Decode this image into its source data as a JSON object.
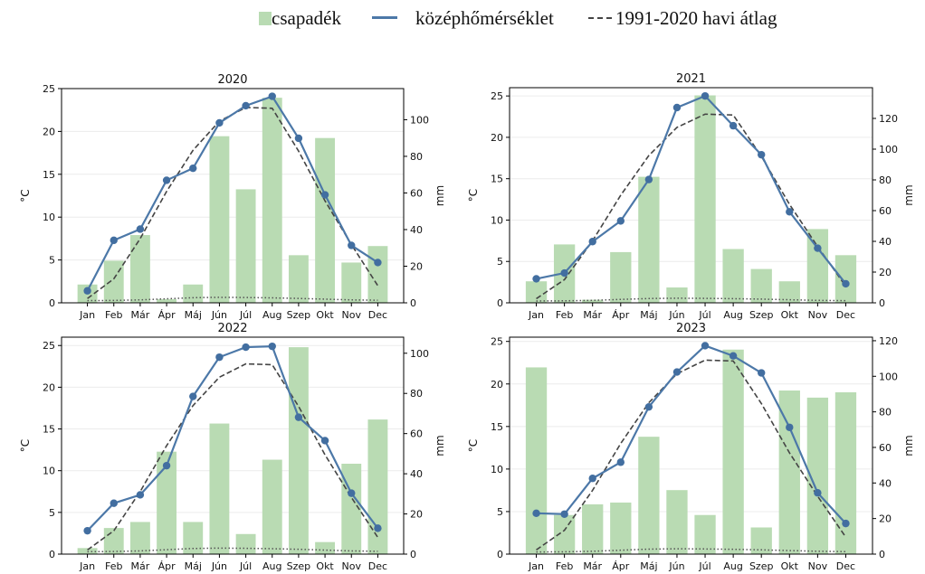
{
  "legend": {
    "precip_label": "csapadék",
    "temp_label": "középhőmérséklet",
    "avg_label": "1991-2020 havi átlag"
  },
  "colors": {
    "bar": "#b9dbb3",
    "temp_line": "#4c78a8",
    "temp_marker": "#426ea0",
    "avg_line": "#444444",
    "axis": "#000000"
  },
  "chart_data": [
    {
      "type": "bar+line",
      "title": "2020",
      "categories": [
        "Jan",
        "Feb",
        "Már",
        "Ápr",
        "Máj",
        "Jún",
        "Júl",
        "Aug",
        "Szep",
        "Okt",
        "Nov",
        "Dec"
      ],
      "ylabel": "°C",
      "y2label": "mm",
      "ylim": [
        0,
        25
      ],
      "y2lim": [
        0,
        117
      ],
      "yticks": [
        0,
        5,
        10,
        15,
        20,
        25
      ],
      "y2ticks": [
        0,
        20,
        40,
        60,
        80,
        100
      ],
      "precipitation": [
        10,
        23,
        37,
        2,
        10,
        91,
        62,
        112,
        26,
        90,
        22,
        31
      ],
      "temperature": [
        1.4,
        7.3,
        8.6,
        14.3,
        15.7,
        21.0,
        23.0,
        24.1,
        19.2,
        12.6,
        6.7,
        4.7
      ],
      "avg_temperature": [
        0.5,
        2.8,
        7.5,
        13.0,
        17.8,
        21.2,
        22.8,
        22.7,
        17.7,
        11.9,
        6.8,
        2.0
      ],
      "avg_precipitation": [
        1.2,
        1.3,
        1.6,
        2.2,
        2.8,
        3.0,
        2.9,
        2.7,
        2.4,
        2.0,
        1.6,
        1.4
      ]
    },
    {
      "type": "bar+line",
      "title": "2021",
      "categories": [
        "Jan",
        "Feb",
        "Már",
        "Ápr",
        "Máj",
        "Jún",
        "Júl",
        "Aug",
        "Szep",
        "Okt",
        "Nov",
        "Dec"
      ],
      "ylabel": "°C",
      "y2label": "mm",
      "ylim": [
        0,
        26
      ],
      "y2lim": [
        0,
        140
      ],
      "yticks": [
        0,
        5,
        10,
        15,
        20,
        25
      ],
      "y2ticks": [
        0,
        20,
        40,
        60,
        80,
        100,
        120
      ],
      "precipitation": [
        14,
        38,
        2,
        33,
        82,
        10,
        135,
        35,
        22,
        14,
        48,
        31
      ],
      "temperature": [
        2.9,
        3.6,
        7.4,
        9.9,
        14.9,
        23.6,
        25.0,
        21.4,
        17.9,
        11.0,
        6.6,
        2.3
      ],
      "avg_temperature": [
        0.5,
        2.8,
        7.5,
        13.0,
        17.8,
        21.2,
        22.8,
        22.7,
        17.7,
        11.9,
        6.8,
        2.0
      ],
      "avg_precipitation": [
        1.2,
        1.3,
        1.6,
        2.2,
        2.8,
        3.0,
        2.9,
        2.7,
        2.4,
        2.0,
        1.6,
        1.4
      ]
    },
    {
      "type": "bar+line",
      "title": "2022",
      "categories": [
        "Jan",
        "Feb",
        "Már",
        "Ápr",
        "Máj",
        "Jún",
        "Júl",
        "Aug",
        "Szep",
        "Okt",
        "Nov",
        "Dec"
      ],
      "ylabel": "°C",
      "y2label": "mm",
      "ylim": [
        0,
        26
      ],
      "y2lim": [
        0,
        108
      ],
      "yticks": [
        0,
        5,
        10,
        15,
        20,
        25
      ],
      "y2ticks": [
        0,
        20,
        40,
        60,
        80,
        100
      ],
      "precipitation": [
        3,
        13,
        16,
        51,
        16,
        65,
        10,
        47,
        103,
        6,
        45,
        67
      ],
      "temperature": [
        2.8,
        6.1,
        7.1,
        10.6,
        18.9,
        23.6,
        24.8,
        24.9,
        16.4,
        13.6,
        7.3,
        3.1
      ],
      "avg_temperature": [
        0.5,
        2.8,
        7.5,
        13.0,
        17.8,
        21.2,
        22.8,
        22.7,
        17.7,
        11.9,
        6.8,
        2.0
      ],
      "avg_precipitation": [
        1.2,
        1.3,
        1.6,
        2.2,
        2.8,
        3.0,
        2.9,
        2.7,
        2.4,
        2.0,
        1.6,
        1.4
      ]
    },
    {
      "type": "bar+line",
      "title": "2023",
      "categories": [
        "Jan",
        "Feb",
        "Már",
        "Ápr",
        "Máj",
        "Jún",
        "Júl",
        "Aug",
        "Szep",
        "Okt",
        "Nov",
        "Dec"
      ],
      "ylabel": "°C",
      "y2label": "mm",
      "ylim": [
        0,
        25.5
      ],
      "y2lim": [
        0,
        122
      ],
      "yticks": [
        0,
        5,
        10,
        15,
        20,
        25
      ],
      "y2ticks": [
        0,
        20,
        40,
        60,
        80,
        100,
        120
      ],
      "precipitation": [
        105,
        22,
        28,
        29,
        66,
        36,
        22,
        115,
        15,
        92,
        88,
        91
      ],
      "temperature": [
        4.8,
        4.7,
        8.9,
        10.8,
        17.3,
        21.4,
        24.5,
        23.3,
        21.3,
        14.9,
        7.2,
        3.6
      ],
      "avg_temperature": [
        0.5,
        2.8,
        7.5,
        13.0,
        17.8,
        21.2,
        22.8,
        22.7,
        17.7,
        11.9,
        6.8,
        2.0
      ],
      "avg_precipitation": [
        1.2,
        1.3,
        1.6,
        2.2,
        2.8,
        3.0,
        2.9,
        2.7,
        2.4,
        2.0,
        1.6,
        1.4
      ]
    }
  ]
}
